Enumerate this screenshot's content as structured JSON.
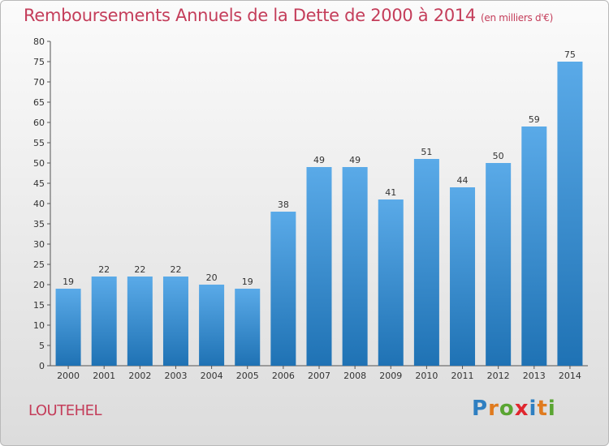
{
  "title": "Remboursements Annuels de la Dette de 2000 à 2014",
  "unit": "(en milliers d'€)",
  "commune": "LOUTEHEL",
  "logo": {
    "letters": [
      "P",
      "r",
      "o",
      "x",
      "i",
      "t",
      "i"
    ],
    "colors": [
      "#2f7fc1",
      "#e07b1f",
      "#5aa532",
      "#e0262e",
      "#2f7fc1",
      "#e07b1f",
      "#5aa532"
    ]
  },
  "colors": {
    "bar_top": "#5aaae8",
    "bar_bottom": "#1f72b4",
    "title": "#c43d5a"
  },
  "chart_data": {
    "type": "bar",
    "categories": [
      "2000",
      "2001",
      "2002",
      "2003",
      "2004",
      "2005",
      "2006",
      "2007",
      "2008",
      "2009",
      "2010",
      "2011",
      "2012",
      "2013",
      "2014"
    ],
    "values": [
      19,
      22,
      22,
      22,
      20,
      19,
      38,
      49,
      49,
      41,
      51,
      44,
      50,
      59,
      75
    ],
    "data_labels": [
      "19",
      "22",
      "22",
      "22",
      "20",
      "19",
      "38",
      "49",
      "49",
      "41",
      "51",
      "44",
      "50",
      "59",
      "75"
    ],
    "y_ticks": [
      "0",
      "5",
      "10",
      "15",
      "20",
      "25",
      "30",
      "35",
      "40",
      "45",
      "50",
      "55",
      "60",
      "65",
      "70",
      "75",
      "80"
    ],
    "ylim": [
      0,
      80
    ],
    "grid": false,
    "legend": "none"
  }
}
